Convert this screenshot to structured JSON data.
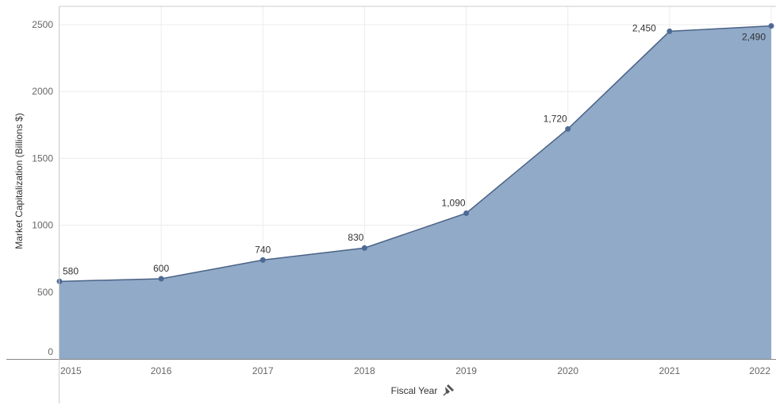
{
  "chart_data": {
    "type": "area",
    "x": [
      "2015",
      "2016",
      "2017",
      "2018",
      "2019",
      "2020",
      "2021",
      "2022"
    ],
    "values": [
      580,
      600,
      740,
      830,
      1090,
      1720,
      2450,
      2490
    ],
    "data_labels": [
      "580",
      "600",
      "740",
      "830",
      "1,090",
      "1,720",
      "2,450",
      "2,490"
    ],
    "xlabel": "Fiscal Year",
    "ylabel": "Market Capitalization (Billions $)",
    "ylim": [
      0,
      2600
    ],
    "yticks": [
      "0",
      "500",
      "1000",
      "1500",
      "2000",
      "2500"
    ],
    "ytick_values": [
      0,
      500,
      1000,
      1500,
      2000,
      2500
    ],
    "grid": true,
    "legend": "none",
    "colors": {
      "area": "#91aac8",
      "line": "#4a6286",
      "marker": "#4e6a94",
      "axis": "#aaaaaa"
    },
    "xlabel_icon": "pin-icon"
  }
}
